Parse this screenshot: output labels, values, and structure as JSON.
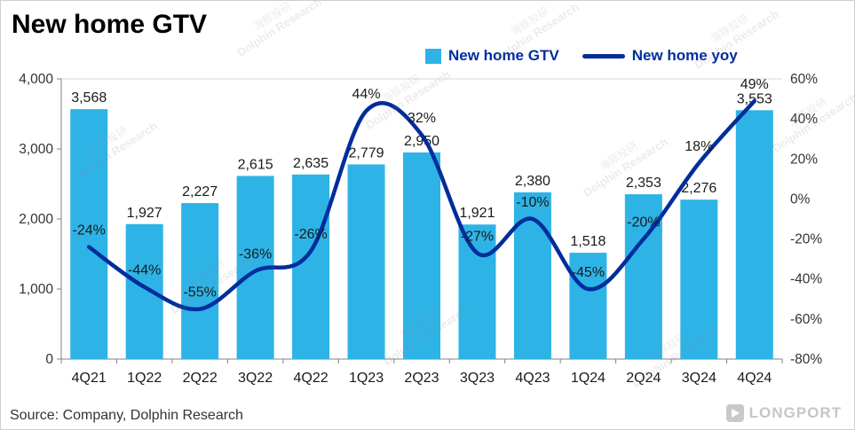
{
  "title": "New home GTV",
  "legend": {
    "items": [
      {
        "label": "New home GTV",
        "type": "bar"
      },
      {
        "label": "New home yoy",
        "type": "line"
      }
    ]
  },
  "colors": {
    "bar": "#2EB3E7",
    "line": "#002D9B",
    "legend_text": "#002D9B",
    "axis_text": "#333333",
    "label_text": "#1a1a1a",
    "axis_line": "#808080",
    "gridline": "#d9d9d9"
  },
  "chart_data": {
    "type": "bar",
    "combo": "bar+line",
    "title": "New home GTV",
    "categories": [
      "4Q21",
      "1Q22",
      "2Q22",
      "3Q22",
      "4Q22",
      "1Q23",
      "2Q23",
      "3Q23",
      "4Q23",
      "1Q24",
      "2Q24",
      "3Q24",
      "4Q24"
    ],
    "series": [
      {
        "name": "New home GTV",
        "type": "bar",
        "axis": "left",
        "values": [
          3568,
          1927,
          2227,
          2615,
          2635,
          2779,
          2950,
          1921,
          2380,
          1518,
          2353,
          2276,
          3553
        ],
        "labels": [
          "3,568",
          "1,927",
          "2,227",
          "2,615",
          "2,635",
          "2,779",
          "2,950",
          "1,921",
          "2,380",
          "1,518",
          "2,353",
          "2,276",
          "3,553"
        ]
      },
      {
        "name": "New home yoy",
        "type": "line",
        "axis": "right",
        "values": [
          -24,
          -44,
          -55,
          -36,
          -26,
          44,
          32,
          -27,
          -10,
          -45,
          -20,
          18,
          49
        ],
        "labels": [
          "-24%",
          "-44%",
          "-55%",
          "-36%",
          "-26%",
          "44%",
          "32%",
          "-27%",
          "-10%",
          "-45%",
          "-20%",
          "18%",
          "49%"
        ]
      }
    ],
    "left_axis": {
      "min": 0,
      "max": 4000,
      "ticks": [
        0,
        1000,
        2000,
        3000,
        4000
      ],
      "tick_labels": [
        "0",
        "1,000",
        "2,000",
        "3,000",
        "4,000"
      ]
    },
    "right_axis": {
      "min": -80,
      "max": 60,
      "ticks": [
        -80,
        -60,
        -40,
        -20,
        0,
        20,
        40,
        60
      ],
      "tick_labels": [
        "-80%",
        "-60%",
        "-40%",
        "-20%",
        "0%",
        "20%",
        "40%",
        "60%"
      ]
    },
    "grid": "top-line-only",
    "legend_position": "top"
  },
  "source": "Source: Company, Dolphin Research",
  "watermark": {
    "cn": "海豚投研",
    "en": "Dolphin Research"
  },
  "logo": "LONGPORT"
}
